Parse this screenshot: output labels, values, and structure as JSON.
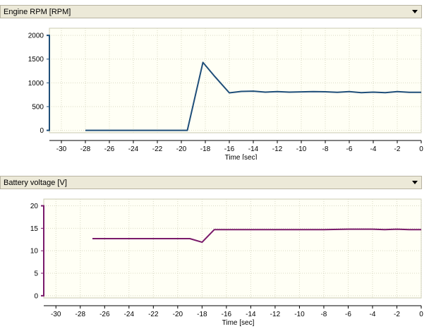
{
  "panels": [
    {
      "title": "Engine RPM [RPM]"
    },
    {
      "title": "Battery voltage [V]"
    }
  ],
  "colors": {
    "header_bg": "#ece9d8",
    "plot_bg": "#fffff5",
    "grid": "#d9d9c4",
    "rpm_line": "#1f4e79",
    "voltage_line": "#7a1a6a"
  },
  "chart_data": [
    {
      "type": "line",
      "title": "",
      "xlabel": "Time [sec]",
      "ylabel": "",
      "xlim": [
        -31,
        0
      ],
      "ylim": [
        -50,
        2150
      ],
      "x_ticks": [
        -30,
        -28,
        -26,
        -24,
        -22,
        -20,
        -18,
        -16,
        -14,
        -12,
        -10,
        -8,
        -6,
        -4,
        -2,
        0
      ],
      "y_ticks": [
        0,
        500,
        1000,
        1500,
        2000
      ],
      "grid": true,
      "series": [
        {
          "name": "",
          "color": "#1f4e79",
          "x": [
            -28,
            -19.5,
            -18.2,
            -17.2,
            -16,
            -15,
            -14,
            -13,
            -12,
            -11,
            -10,
            -9,
            -8,
            -7,
            -6,
            -5,
            -4,
            -3,
            -2,
            -1,
            0
          ],
          "y": [
            0,
            0,
            1430,
            1130,
            790,
            820,
            825,
            805,
            815,
            805,
            810,
            815,
            812,
            800,
            815,
            795,
            805,
            795,
            815,
            800,
            800
          ]
        }
      ]
    },
    {
      "type": "line",
      "title": "",
      "xlabel": "Time [sec]",
      "ylabel": "",
      "xlim": [
        -31,
        0
      ],
      "ylim": [
        -0.5,
        21.5
      ],
      "x_ticks": [
        -30,
        -28,
        -26,
        -24,
        -22,
        -20,
        -18,
        -16,
        -14,
        -12,
        -10,
        -8,
        -6,
        -4,
        -2,
        0
      ],
      "y_ticks": [
        0,
        5,
        10,
        15,
        20
      ],
      "grid": true,
      "series": [
        {
          "name": "",
          "color": "#7a1a6a",
          "x": [
            -27,
            -19,
            -18,
            -17,
            -16,
            -14,
            -12,
            -10,
            -8,
            -6,
            -4,
            -3,
            -2,
            -1,
            0
          ],
          "y": [
            12.7,
            12.7,
            11.9,
            14.7,
            14.7,
            14.7,
            14.7,
            14.7,
            14.7,
            14.8,
            14.8,
            14.7,
            14.8,
            14.7,
            14.7
          ]
        }
      ]
    }
  ]
}
